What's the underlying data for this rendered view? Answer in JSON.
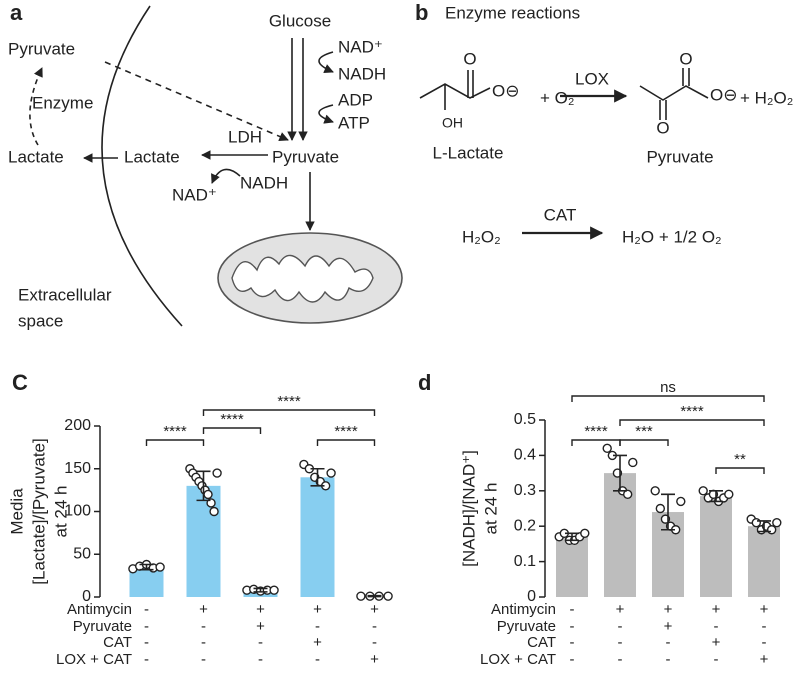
{
  "panel_a": {
    "label": "a",
    "glucose": "Glucose",
    "nad_plus_top": "NAD⁺",
    "nadh_top": "NADH",
    "adp": "ADP",
    "atp": "ATP",
    "pyruvate_out": "Pyruvate",
    "enzyme": "Enzyme",
    "lactate_out": "Lactate",
    "lactate_in": "Lactate",
    "ldh": "LDH",
    "pyruvate_in": "Pyruvate",
    "nad_plus_bottom": "NAD⁺",
    "nadh_bottom": "NADH",
    "extracellular_1": "Extracellular",
    "extracellular_2": "space"
  },
  "panel_b": {
    "label": "b",
    "title": "Enzyme reactions",
    "lactate_atoms": [
      "O",
      "O⊖",
      "OH"
    ],
    "plus_o2": "+ O₂",
    "lox": "LOX",
    "pyruvate_atoms": [
      "O",
      "O⊖",
      "O"
    ],
    "plus_h2o2": "+ H₂O₂",
    "lactate_name": "L-Lactate",
    "pyruvate_name": "Pyruvate",
    "h2o2": "H₂O₂",
    "cat": "CAT",
    "products": "H₂O + 1/2 O₂"
  },
  "chart_data": [
    {
      "type": "bar",
      "label": "C",
      "ylabel": [
        "Media",
        "[Lactate]/[Pyruvate]",
        "at 24 h"
      ],
      "values": [
        35,
        130,
        8,
        140,
        1
      ],
      "errors": [
        3,
        17,
        2,
        10,
        0.5
      ],
      "points": [
        [
          33,
          36,
          38,
          34,
          35
        ],
        [
          150,
          145,
          140,
          135,
          130,
          125,
          120,
          110,
          100,
          145
        ],
        [
          8,
          9,
          7,
          8,
          8
        ],
        [
          155,
          150,
          140,
          135,
          130,
          145
        ],
        [
          1,
          1,
          1,
          1
        ]
      ],
      "color": "#87cef0",
      "ylim": [
        0,
        200
      ],
      "yticks": [
        0,
        50,
        100,
        150,
        200
      ],
      "conditions": [
        {
          "name": "Antimycin",
          "signs": [
            "-",
            "+",
            "+",
            "+",
            "+"
          ]
        },
        {
          "name": "Pyruvate",
          "signs": [
            "-",
            "-",
            "+",
            "-",
            "-"
          ]
        },
        {
          "name": "CAT",
          "signs": [
            "-",
            "-",
            "-",
            "+",
            "-"
          ]
        },
        {
          "name": "LOX + CAT",
          "signs": [
            "-",
            "-",
            "-",
            "-",
            "+"
          ]
        }
      ],
      "significance": [
        {
          "from": 0,
          "to": 1,
          "label": "****"
        },
        {
          "from": 1,
          "to": 2,
          "label": "****"
        },
        {
          "from": 1,
          "to": 4,
          "label": "****"
        },
        {
          "from": 3,
          "to": 4,
          "label": "****"
        }
      ]
    },
    {
      "type": "bar",
      "label": "d",
      "ylabel": [
        "[NADH]/[NAD⁺]",
        "at 24 h"
      ],
      "values": [
        0.17,
        0.35,
        0.24,
        0.285,
        0.2
      ],
      "errors": [
        0.01,
        0.05,
        0.05,
        0.015,
        0.015
      ],
      "points": [
        [
          0.17,
          0.18,
          0.16,
          0.16,
          0.17,
          0.18
        ],
        [
          0.42,
          0.4,
          0.35,
          0.3,
          0.29,
          0.38
        ],
        [
          0.3,
          0.25,
          0.22,
          0.2,
          0.19,
          0.27
        ],
        [
          0.3,
          0.28,
          0.29,
          0.27,
          0.28,
          0.29
        ],
        [
          0.22,
          0.21,
          0.19,
          0.2,
          0.19,
          0.21
        ]
      ],
      "color": "#bdbdbd",
      "ylim": [
        0,
        0.5
      ],
      "yticks": [
        0,
        0.1,
        0.2,
        0.3,
        0.4,
        0.5
      ],
      "conditions": [
        {
          "name": "Antimycin",
          "signs": [
            "-",
            "+",
            "+",
            "+",
            "+"
          ]
        },
        {
          "name": "Pyruvate",
          "signs": [
            "-",
            "-",
            "+",
            "-",
            "-"
          ]
        },
        {
          "name": "CAT",
          "signs": [
            "-",
            "-",
            "-",
            "+",
            "-"
          ]
        },
        {
          "name": "LOX + CAT",
          "signs": [
            "-",
            "-",
            "-",
            "-",
            "+"
          ]
        }
      ],
      "significance": [
        {
          "from": 0,
          "to": 4,
          "label": "ns"
        },
        {
          "from": 1,
          "to": 4,
          "label": "****"
        },
        {
          "from": 1,
          "to": 2,
          "label": "***"
        },
        {
          "from": 0,
          "to": 1,
          "label": "****"
        },
        {
          "from": 3,
          "to": 4,
          "label": "**"
        }
      ]
    }
  ]
}
